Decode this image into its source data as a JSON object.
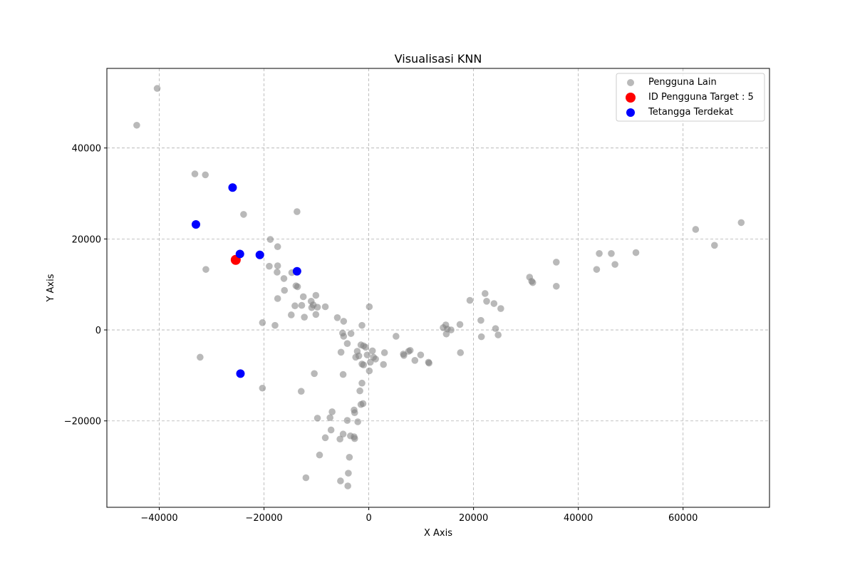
{
  "chart_data": {
    "type": "scatter",
    "title": "Visualisasi KNN",
    "xlabel": "X Axis",
    "ylabel": "Y Axis",
    "xlim": [
      -50000,
      76500
    ],
    "ylim": [
      -39000,
      57500
    ],
    "xticks": [
      -40000,
      -20000,
      0,
      20000,
      40000,
      60000
    ],
    "xtick_labels": [
      "−40000",
      "−20000",
      "0",
      "20000",
      "40000",
      "60000"
    ],
    "yticks": [
      -20000,
      0,
      20000,
      40000
    ],
    "ytick_labels": [
      "−20000",
      "0",
      "20000",
      "40000"
    ],
    "grid": true,
    "legend_position": "top-right",
    "series": [
      {
        "name": "Pengguna Lain",
        "color": "#808080",
        "points": [
          [
            -44300,
            45000
          ],
          [
            -40400,
            53100
          ],
          [
            -33200,
            34300
          ],
          [
            -31200,
            34100
          ],
          [
            -31100,
            13300
          ],
          [
            -32200,
            -6000
          ],
          [
            -23900,
            25400
          ],
          [
            -18800,
            19900
          ],
          [
            -17400,
            18300
          ],
          [
            -19000,
            14000
          ],
          [
            -17400,
            14100
          ],
          [
            -17500,
            12700
          ],
          [
            -16200,
            11300
          ],
          [
            -16100,
            8700
          ],
          [
            -17400,
            6900
          ],
          [
            -14700,
            12600
          ],
          [
            -13700,
            26000
          ],
          [
            -13900,
            9700
          ],
          [
            -13600,
            9500
          ],
          [
            -12500,
            7300
          ],
          [
            -14100,
            5300
          ],
          [
            -12800,
            5400
          ],
          [
            -14800,
            3300
          ],
          [
            -12300,
            2800
          ],
          [
            -11000,
            6300
          ],
          [
            -10100,
            7600
          ],
          [
            -10600,
            5500
          ],
          [
            -10900,
            4900
          ],
          [
            -9800,
            5000
          ],
          [
            -8300,
            5100
          ],
          [
            -10100,
            3400
          ],
          [
            -6000,
            2700
          ],
          [
            -4800,
            1900
          ],
          [
            -5000,
            -700
          ],
          [
            -4800,
            -1400
          ],
          [
            -4100,
            -3000
          ],
          [
            -3400,
            -800
          ],
          [
            -1300,
            1000
          ],
          [
            100,
            5100
          ],
          [
            -20300,
            1600
          ],
          [
            -17900,
            1000
          ],
          [
            -1000,
            -3500
          ],
          [
            -1500,
            -3300
          ],
          [
            -2200,
            -4700
          ],
          [
            -5300,
            -4900
          ],
          [
            -600,
            -3800
          ],
          [
            -2500,
            -6000
          ],
          [
            -1900,
            -5700
          ],
          [
            -1300,
            -7500
          ],
          [
            -1000,
            -7700
          ],
          [
            -300,
            -5500
          ],
          [
            300,
            -7100
          ],
          [
            700,
            -4600
          ],
          [
            900,
            -6000
          ],
          [
            1300,
            -6400
          ],
          [
            100,
            -9000
          ],
          [
            2800,
            -7600
          ],
          [
            3000,
            -5000
          ],
          [
            5200,
            -1400
          ],
          [
            6600,
            -5300
          ],
          [
            6700,
            -5600
          ],
          [
            7600,
            -4700
          ],
          [
            7900,
            -4500
          ],
          [
            8800,
            -6700
          ],
          [
            9900,
            -5500
          ],
          [
            11400,
            -7100
          ],
          [
            11500,
            -7300
          ],
          [
            -20300,
            -12800
          ],
          [
            -10400,
            -9600
          ],
          [
            -4900,
            -9800
          ],
          [
            -1300,
            -11700
          ],
          [
            -1700,
            -13400
          ],
          [
            -12900,
            -13500
          ],
          [
            -1500,
            -16400
          ],
          [
            -1100,
            -16200
          ],
          [
            -7000,
            -18000
          ],
          [
            -2800,
            -17600
          ],
          [
            -2700,
            -18200
          ],
          [
            -9800,
            -19400
          ],
          [
            -7400,
            -19300
          ],
          [
            -4100,
            -19900
          ],
          [
            -2100,
            -20200
          ],
          [
            -7200,
            -22000
          ],
          [
            -4900,
            -22900
          ],
          [
            -3500,
            -23300
          ],
          [
            -2800,
            -23500
          ],
          [
            -2700,
            -23900
          ],
          [
            -8300,
            -23700
          ],
          [
            -5500,
            -24000
          ],
          [
            -9400,
            -27500
          ],
          [
            -3700,
            -28000
          ],
          [
            -12000,
            -32500
          ],
          [
            -3900,
            -31500
          ],
          [
            -5400,
            -33200
          ],
          [
            -4000,
            -34300
          ],
          [
            14200,
            500
          ],
          [
            14700,
            1100
          ],
          [
            15000,
            200
          ],
          [
            15700,
            0
          ],
          [
            14800,
            -900
          ],
          [
            17400,
            1200
          ],
          [
            17500,
            -5000
          ],
          [
            19300,
            6500
          ],
          [
            21400,
            2100
          ],
          [
            21500,
            -1500
          ],
          [
            22200,
            8000
          ],
          [
            22500,
            6300
          ],
          [
            23900,
            5800
          ],
          [
            25200,
            4700
          ],
          [
            24200,
            300
          ],
          [
            24700,
            -1100
          ],
          [
            30700,
            11600
          ],
          [
            31100,
            10700
          ],
          [
            31300,
            10400
          ],
          [
            35800,
            14900
          ],
          [
            35800,
            9600
          ],
          [
            44000,
            16800
          ],
          [
            43500,
            13300
          ],
          [
            46300,
            16800
          ],
          [
            47000,
            14400
          ],
          [
            51000,
            17000
          ],
          [
            62400,
            22100
          ],
          [
            66000,
            18600
          ],
          [
            71100,
            23600
          ]
        ]
      },
      {
        "name": "ID Pengguna Target : 5",
        "color": "#ff0000",
        "points": [
          [
            -25400,
            15400
          ]
        ]
      },
      {
        "name": "Tetangga Terdekat",
        "color": "#0000ff",
        "points": [
          [
            -26000,
            31300
          ],
          [
            -33000,
            23200
          ],
          [
            -24600,
            16700
          ],
          [
            -20800,
            16500
          ],
          [
            -13700,
            12900
          ],
          [
            -24500,
            -9600
          ]
        ]
      }
    ]
  }
}
